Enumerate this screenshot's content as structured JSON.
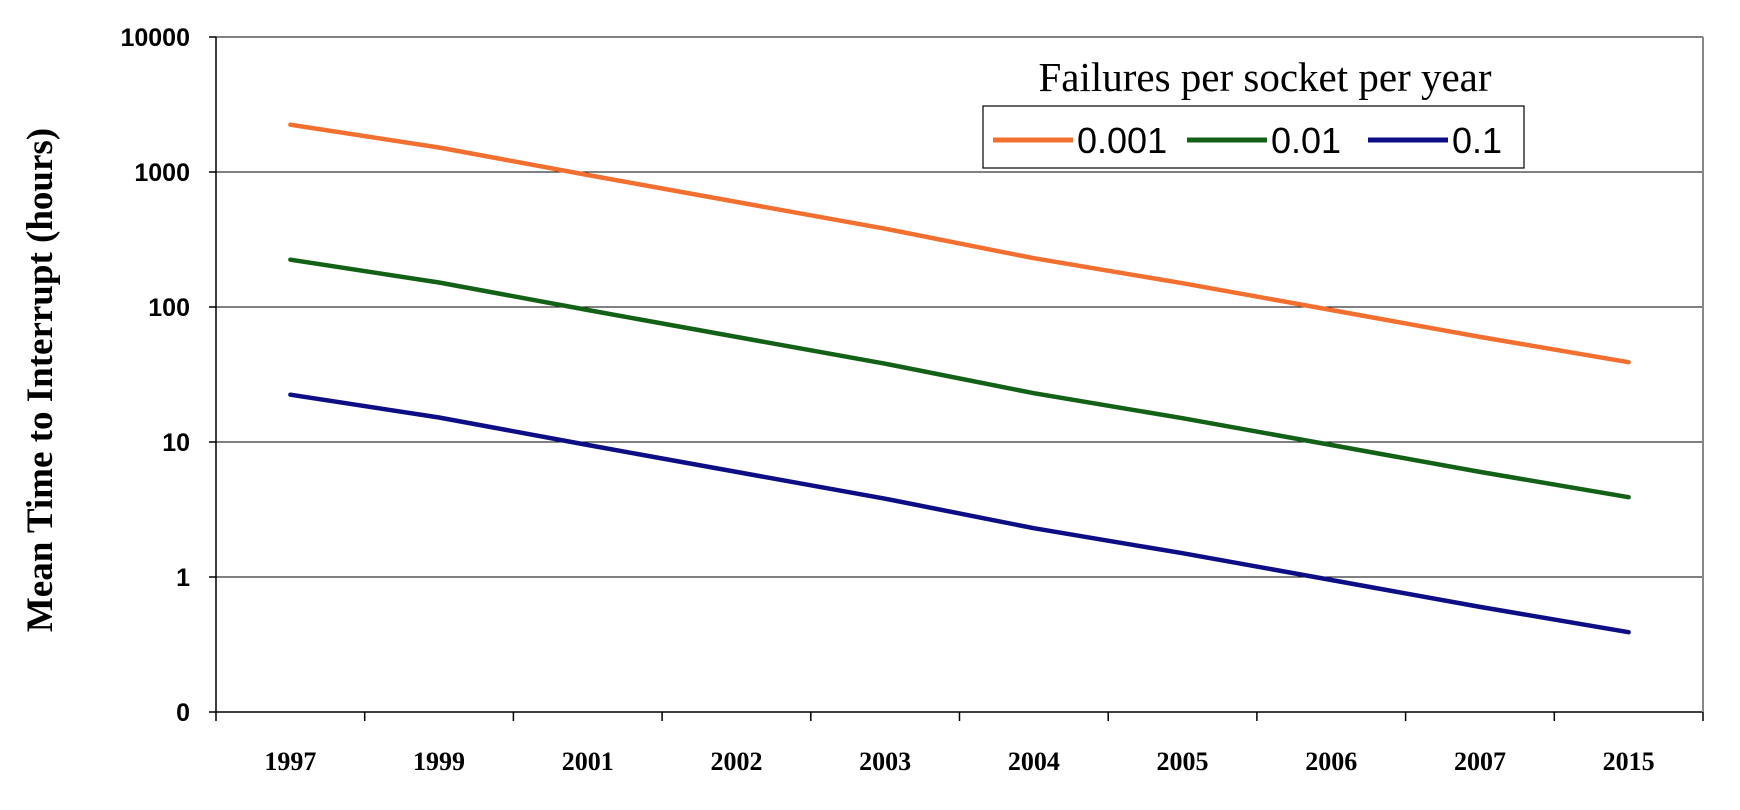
{
  "chart_data": {
    "type": "line",
    "ylabel": "Mean Time to Interrupt (hours)",
    "xlabel": "",
    "y_scale": "log",
    "ylim": [
      0.1,
      10000
    ],
    "y_ticks": [
      {
        "value": 0.1,
        "label": "0"
      },
      {
        "value": 1,
        "label": "1"
      },
      {
        "value": 10,
        "label": "10"
      },
      {
        "value": 100,
        "label": "100"
      },
      {
        "value": 1000,
        "label": "1000"
      },
      {
        "value": 10000,
        "label": "10000"
      }
    ],
    "categories": [
      "1997",
      "1999",
      "2001",
      "2002",
      "2003",
      "2004",
      "2005",
      "2006",
      "2007",
      "2015"
    ],
    "legend": {
      "title": "Failures per socket per year",
      "position": "top-right"
    },
    "grid": true,
    "series": [
      {
        "name": "0.001",
        "color": "#F26F30",
        "values": [
          2240,
          1520,
          950,
          600,
          380,
          230,
          150,
          95,
          60,
          39
        ]
      },
      {
        "name": "0.01",
        "color": "#136116",
        "values": [
          224,
          152,
          95,
          60,
          38,
          23,
          15,
          9.5,
          6.0,
          3.9
        ]
      },
      {
        "name": "0.1",
        "color": "#0D0D85",
        "values": [
          22.4,
          15.2,
          9.5,
          6.0,
          3.8,
          2.3,
          1.5,
          0.95,
          0.6,
          0.39
        ]
      }
    ]
  }
}
